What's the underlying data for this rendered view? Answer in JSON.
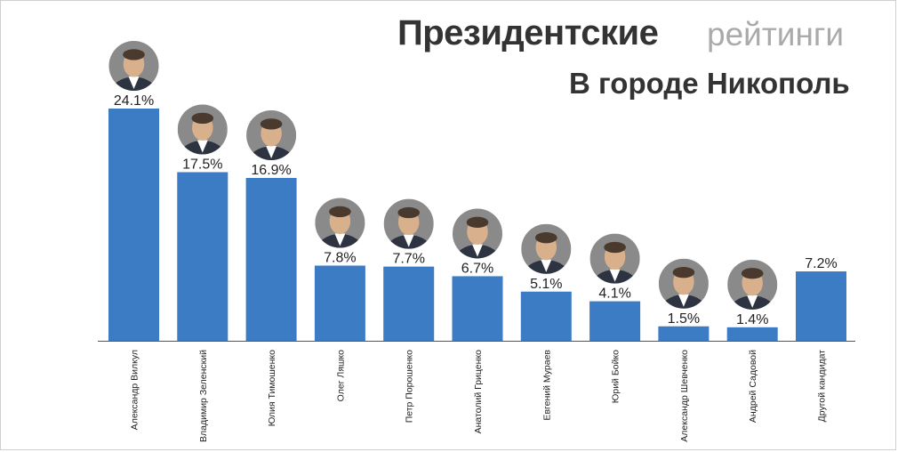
{
  "header": {
    "title_bold": "Президентские",
    "title_light": "рейтинги",
    "subtitle": "В городе Никополь"
  },
  "chart_data": {
    "type": "bar",
    "title": "Президентские рейтинги",
    "subtitle": "В городе Никополь",
    "categories": [
      "Александр Вилкул",
      "Владимир Зеленский",
      "Юлия Тимошенко",
      "Олег Ляшко",
      "Петр Порошенко",
      "Анатолий Гриценко",
      "Евгений Мураев",
      "Юрий Бойко",
      "Александр Шевченко",
      "Андрей Садовой",
      "Другой кандидат"
    ],
    "values": [
      24.1,
      17.5,
      16.9,
      7.8,
      7.7,
      6.7,
      5.1,
      4.1,
      1.5,
      1.4,
      7.2
    ],
    "value_labels": [
      "24.1%",
      "17.5%",
      "16.9%",
      "7.8%",
      "7.7%",
      "6.7%",
      "5.1%",
      "4.1%",
      "1.5%",
      "1.4%",
      "7.2%"
    ],
    "has_photo": [
      true,
      true,
      true,
      true,
      true,
      true,
      true,
      true,
      true,
      true,
      false
    ],
    "ylim": [
      0,
      24.1
    ],
    "bar_color": "#3b7cc4",
    "grid": false,
    "legend": "none"
  }
}
